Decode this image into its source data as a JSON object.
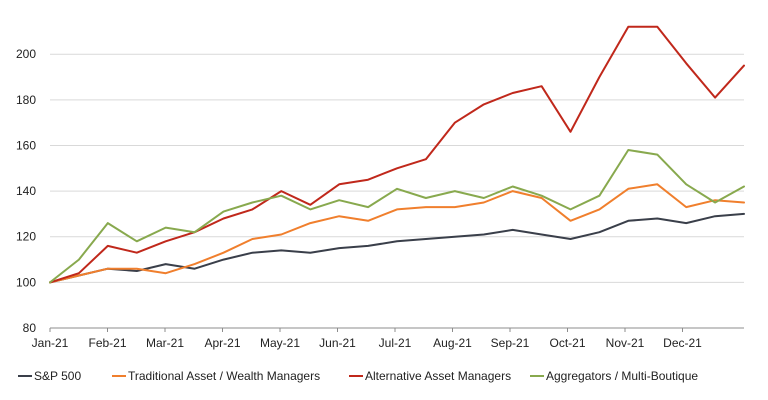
{
  "chart_data": {
    "type": "line",
    "title": "",
    "xlabel": "",
    "ylabel": "",
    "ylim": [
      80,
      215
    ],
    "yticks": [
      80,
      100,
      120,
      140,
      160,
      180,
      200
    ],
    "grid": "horizontal",
    "legend": "bottom",
    "x": [
      "Jan-21",
      "Jan-21",
      "Feb-21",
      "Feb-21",
      "Mar-21",
      "Mar-21",
      "Apr-21",
      "Apr-21",
      "May-21",
      "May-21",
      "Jun-21",
      "Jun-21",
      "Jul-21",
      "Jul-21",
      "Aug-21",
      "Aug-21",
      "Sep-21",
      "Sep-21",
      "Oct-21",
      "Oct-21",
      "Nov-21",
      "Nov-21",
      "Dec-21",
      "Dec-21",
      "Dec-21"
    ],
    "xtick_labels": [
      "Jan-21",
      "Feb-21",
      "Mar-21",
      "Apr-21",
      "May-21",
      "Jun-21",
      "Jul-21",
      "Aug-21",
      "Sep-21",
      "Oct-21",
      "Nov-21",
      "Dec-21"
    ],
    "series": [
      {
        "name": "S&P 500",
        "color": "#3a3f4a",
        "values": [
          100,
          103,
          106,
          105,
          108,
          106,
          110,
          113,
          114,
          113,
          115,
          116,
          118,
          119,
          120,
          121,
          123,
          121,
          119,
          122,
          127,
          128,
          126,
          129,
          130
        ]
      },
      {
        "name": "Traditional Asset / Wealth Managers",
        "color": "#f07f2d",
        "values": [
          100,
          103,
          106,
          106,
          104,
          108,
          113,
          119,
          121,
          126,
          129,
          127,
          132,
          133,
          133,
          135,
          140,
          137,
          127,
          132,
          141,
          143,
          133,
          136,
          135
        ]
      },
      {
        "name": "Alternative Asset Managers",
        "color": "#c0281b",
        "values": [
          100,
          104,
          116,
          113,
          118,
          122,
          128,
          132,
          140,
          134,
          143,
          145,
          150,
          154,
          170,
          178,
          183,
          186,
          166,
          190,
          212,
          212,
          196,
          181,
          195
        ]
      },
      {
        "name": "Aggregators / Multi-Boutique",
        "color": "#88a94e",
        "values": [
          100,
          110,
          126,
          118,
          124,
          122,
          131,
          135,
          138,
          132,
          136,
          133,
          141,
          137,
          140,
          137,
          142,
          138,
          132,
          138,
          158,
          156,
          143,
          135,
          142
        ]
      }
    ]
  }
}
